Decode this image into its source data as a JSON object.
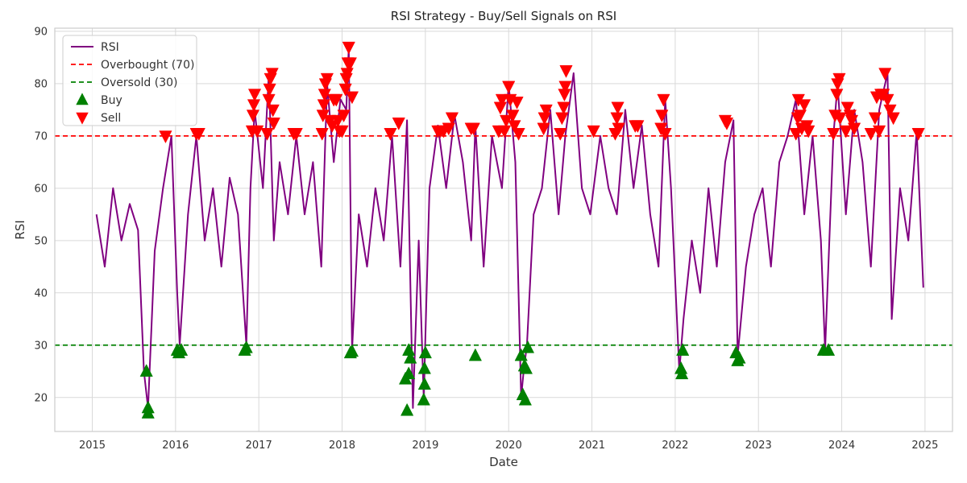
{
  "chart_data": {
    "type": "line",
    "title": "RSI Strategy - Buy/Sell Signals on RSI",
    "xlabel": "Date",
    "ylabel": "RSI",
    "xlim": [
      2014.55,
      2025.33
    ],
    "ylim": [
      13.5,
      90.6
    ],
    "x_ticks": [
      2015,
      2016,
      2017,
      2018,
      2019,
      2020,
      2021,
      2022,
      2023,
      2024,
      2025
    ],
    "x_tick_labels": [
      "2015",
      "2016",
      "2017",
      "2018",
      "2019",
      "2020",
      "2021",
      "2022",
      "2023",
      "2024",
      "2025"
    ],
    "y_ticks": [
      20,
      30,
      40,
      50,
      60,
      70,
      80,
      90
    ],
    "y_tick_labels": [
      "20",
      "30",
      "40",
      "50",
      "60",
      "70",
      "80",
      "90"
    ],
    "grid": true,
    "legend_position": "top-left",
    "series": [
      {
        "name": "RSI",
        "kind": "line",
        "color": "#800080",
        "x": [
          2015.05,
          2015.15,
          2015.25,
          2015.35,
          2015.45,
          2015.55,
          2015.62,
          2015.67,
          2015.75,
          2015.85,
          2015.95,
          2016.02,
          2016.05,
          2016.15,
          2016.25,
          2016.35,
          2016.45,
          2016.55,
          2016.65,
          2016.75,
          2016.85,
          2016.9,
          2016.95,
          2017.05,
          2017.12,
          2017.18,
          2017.25,
          2017.35,
          2017.45,
          2017.55,
          2017.65,
          2017.75,
          2017.82,
          2017.9,
          2017.98,
          2018.05,
          2018.08,
          2018.12,
          2018.2,
          2018.3,
          2018.4,
          2018.5,
          2018.6,
          2018.7,
          2018.78,
          2018.85,
          2018.92,
          2018.98,
          2019.05,
          2019.15,
          2019.25,
          2019.35,
          2019.45,
          2019.55,
          2019.6,
          2019.7,
          2019.8,
          2019.92,
          2020.0,
          2020.08,
          2020.15,
          2020.18,
          2020.22,
          2020.3,
          2020.4,
          2020.5,
          2020.6,
          2020.68,
          2020.78,
          2020.88,
          2020.98,
          2021.1,
          2021.2,
          2021.3,
          2021.4,
          2021.5,
          2021.6,
          2021.7,
          2021.8,
          2021.88,
          2021.95,
          2022.05,
          2022.1,
          2022.2,
          2022.3,
          2022.4,
          2022.5,
          2022.6,
          2022.7,
          2022.75,
          2022.85,
          2022.95,
          2023.05,
          2023.15,
          2023.25,
          2023.35,
          2023.45,
          2023.55,
          2023.65,
          2023.75,
          2023.8,
          2023.9,
          2023.95,
          2024.05,
          2024.15,
          2024.25,
          2024.35,
          2024.45,
          2024.55,
          2024.6,
          2024.7,
          2024.8,
          2024.9,
          2024.98
        ],
        "values": [
          55,
          45,
          60,
          50,
          57,
          52,
          25,
          18,
          48,
          60,
          70,
          40,
          30,
          55,
          70,
          50,
          60,
          45,
          62,
          55,
          30,
          60,
          75,
          60,
          82,
          50,
          65,
          55,
          70,
          55,
          65,
          45,
          80,
          65,
          77,
          75,
          87,
          29,
          55,
          45,
          60,
          50,
          70,
          45,
          73,
          18,
          50,
          20,
          60,
          72,
          60,
          74,
          65,
          50,
          72,
          45,
          70,
          60,
          80,
          65,
          20,
          25,
          30,
          55,
          60,
          75,
          55,
          70,
          82,
          60,
          55,
          70,
          60,
          55,
          75,
          60,
          72,
          55,
          45,
          77,
          60,
          25,
          35,
          50,
          40,
          60,
          45,
          65,
          73,
          28,
          45,
          55,
          60,
          45,
          65,
          70,
          77,
          55,
          70,
          50,
          29,
          70,
          80,
          55,
          75,
          65,
          45,
          75,
          82,
          35,
          60,
          50,
          71,
          41
        ]
      },
      {
        "name": "Overbought (70)",
        "kind": "hline",
        "value": 70,
        "color": "#ff0000"
      },
      {
        "name": "Oversold (30)",
        "kind": "hline",
        "value": 30,
        "color": "#008000"
      },
      {
        "name": "Buy",
        "kind": "scatter",
        "marker": "triangle-up",
        "color": "#008000",
        "points": [
          [
            2015.65,
            25
          ],
          [
            2015.67,
            18
          ],
          [
            2015.67,
            17
          ],
          [
            2016.02,
            29
          ],
          [
            2016.04,
            28.5
          ],
          [
            2016.07,
            29
          ],
          [
            2016.83,
            29
          ],
          [
            2016.85,
            29.5
          ],
          [
            2018.1,
            28.5
          ],
          [
            2018.12,
            28.8
          ],
          [
            2018.76,
            23.5
          ],
          [
            2018.78,
            17.5
          ],
          [
            2018.8,
            24.5
          ],
          [
            2018.8,
            29
          ],
          [
            2018.82,
            27.5
          ],
          [
            2018.98,
            19.5
          ],
          [
            2018.99,
            22.5
          ],
          [
            2018.99,
            25.5
          ],
          [
            2019.0,
            28.5
          ],
          [
            2019.6,
            28
          ],
          [
            2020.15,
            28
          ],
          [
            2020.17,
            20.5
          ],
          [
            2020.19,
            26
          ],
          [
            2020.2,
            19.5
          ],
          [
            2020.21,
            25.5
          ],
          [
            2020.23,
            29.5
          ],
          [
            2022.07,
            25.5
          ],
          [
            2022.08,
            24.5
          ],
          [
            2022.09,
            29
          ],
          [
            2022.73,
            28.5
          ],
          [
            2022.75,
            27
          ],
          [
            2022.77,
            27.5
          ],
          [
            2023.78,
            29
          ],
          [
            2023.84,
            29
          ]
        ]
      },
      {
        "name": "Sell",
        "kind": "scatter",
        "marker": "triangle-down",
        "color": "#ff0000",
        "points": [
          [
            2015.88,
            70
          ],
          [
            2016.25,
            70.5
          ],
          [
            2016.28,
            70.5
          ],
          [
            2016.92,
            71
          ],
          [
            2016.93,
            74
          ],
          [
            2016.94,
            76
          ],
          [
            2016.95,
            78
          ],
          [
            2016.98,
            71
          ],
          [
            2017.1,
            70.5
          ],
          [
            2017.12,
            77
          ],
          [
            2017.13,
            79
          ],
          [
            2017.14,
            81
          ],
          [
            2017.16,
            82
          ],
          [
            2017.17,
            75
          ],
          [
            2017.18,
            72.5
          ],
          [
            2017.42,
            70.5
          ],
          [
            2017.45,
            70.5
          ],
          [
            2017.76,
            70.5
          ],
          [
            2017.77,
            74
          ],
          [
            2017.78,
            76
          ],
          [
            2017.79,
            78
          ],
          [
            2017.8,
            80
          ],
          [
            2017.82,
            81
          ],
          [
            2017.85,
            73
          ],
          [
            2017.88,
            72
          ],
          [
            2017.9,
            77
          ],
          [
            2017.93,
            77
          ],
          [
            2017.95,
            73
          ],
          [
            2017.97,
            71
          ],
          [
            2018.0,
            71
          ],
          [
            2018.02,
            74
          ],
          [
            2018.04,
            79
          ],
          [
            2018.05,
            81
          ],
          [
            2018.06,
            82
          ],
          [
            2018.07,
            84
          ],
          [
            2018.08,
            87
          ],
          [
            2018.1,
            84
          ],
          [
            2018.12,
            77.5
          ],
          [
            2018.58,
            70.5
          ],
          [
            2018.68,
            72.5
          ],
          [
            2019.15,
            71
          ],
          [
            2019.18,
            71
          ],
          [
            2019.22,
            71
          ],
          [
            2019.28,
            71.5
          ],
          [
            2019.32,
            73.5
          ],
          [
            2019.55,
            71.5
          ],
          [
            2019.58,
            71.5
          ],
          [
            2019.88,
            71
          ],
          [
            2019.9,
            75.5
          ],
          [
            2019.92,
            77
          ],
          [
            2019.95,
            71
          ],
          [
            2019.97,
            73
          ],
          [
            2020.0,
            79.5
          ],
          [
            2020.02,
            77
          ],
          [
            2020.05,
            74
          ],
          [
            2020.07,
            72
          ],
          [
            2020.1,
            76.5
          ],
          [
            2020.12,
            70.5
          ],
          [
            2020.42,
            71.5
          ],
          [
            2020.43,
            73.5
          ],
          [
            2020.45,
            75
          ],
          [
            2020.62,
            70.5
          ],
          [
            2020.64,
            73.5
          ],
          [
            2020.66,
            75.5
          ],
          [
            2020.67,
            78
          ],
          [
            2020.68,
            79.5
          ],
          [
            2020.69,
            82.5
          ],
          [
            2021.02,
            71
          ],
          [
            2021.28,
            70.5
          ],
          [
            2021.3,
            73.5
          ],
          [
            2021.31,
            75.5
          ],
          [
            2021.32,
            71.5
          ],
          [
            2021.52,
            72
          ],
          [
            2021.55,
            72
          ],
          [
            2021.83,
            71.5
          ],
          [
            2021.84,
            74
          ],
          [
            2021.86,
            77
          ],
          [
            2021.88,
            70.5
          ],
          [
            2022.6,
            73
          ],
          [
            2022.62,
            72.5
          ],
          [
            2023.45,
            70.5
          ],
          [
            2023.47,
            73.5
          ],
          [
            2023.48,
            77
          ],
          [
            2023.5,
            74
          ],
          [
            2023.52,
            71.5
          ],
          [
            2023.55,
            76
          ],
          [
            2023.58,
            72
          ],
          [
            2023.6,
            71
          ],
          [
            2023.9,
            70.5
          ],
          [
            2023.92,
            74
          ],
          [
            2023.94,
            78
          ],
          [
            2023.95,
            80
          ],
          [
            2023.97,
            81
          ],
          [
            2023.98,
            73.5
          ],
          [
            2024.05,
            71
          ],
          [
            2024.07,
            75.5
          ],
          [
            2024.1,
            74
          ],
          [
            2024.12,
            73
          ],
          [
            2024.15,
            71.5
          ],
          [
            2024.35,
            70.5
          ],
          [
            2024.4,
            73.5
          ],
          [
            2024.42,
            77.5
          ],
          [
            2024.45,
            71
          ],
          [
            2024.47,
            78
          ],
          [
            2024.5,
            78
          ],
          [
            2024.52,
            82
          ],
          [
            2024.55,
            77
          ],
          [
            2024.58,
            75
          ],
          [
            2024.62,
            73.5
          ],
          [
            2024.92,
            70.5
          ]
        ]
      }
    ]
  }
}
